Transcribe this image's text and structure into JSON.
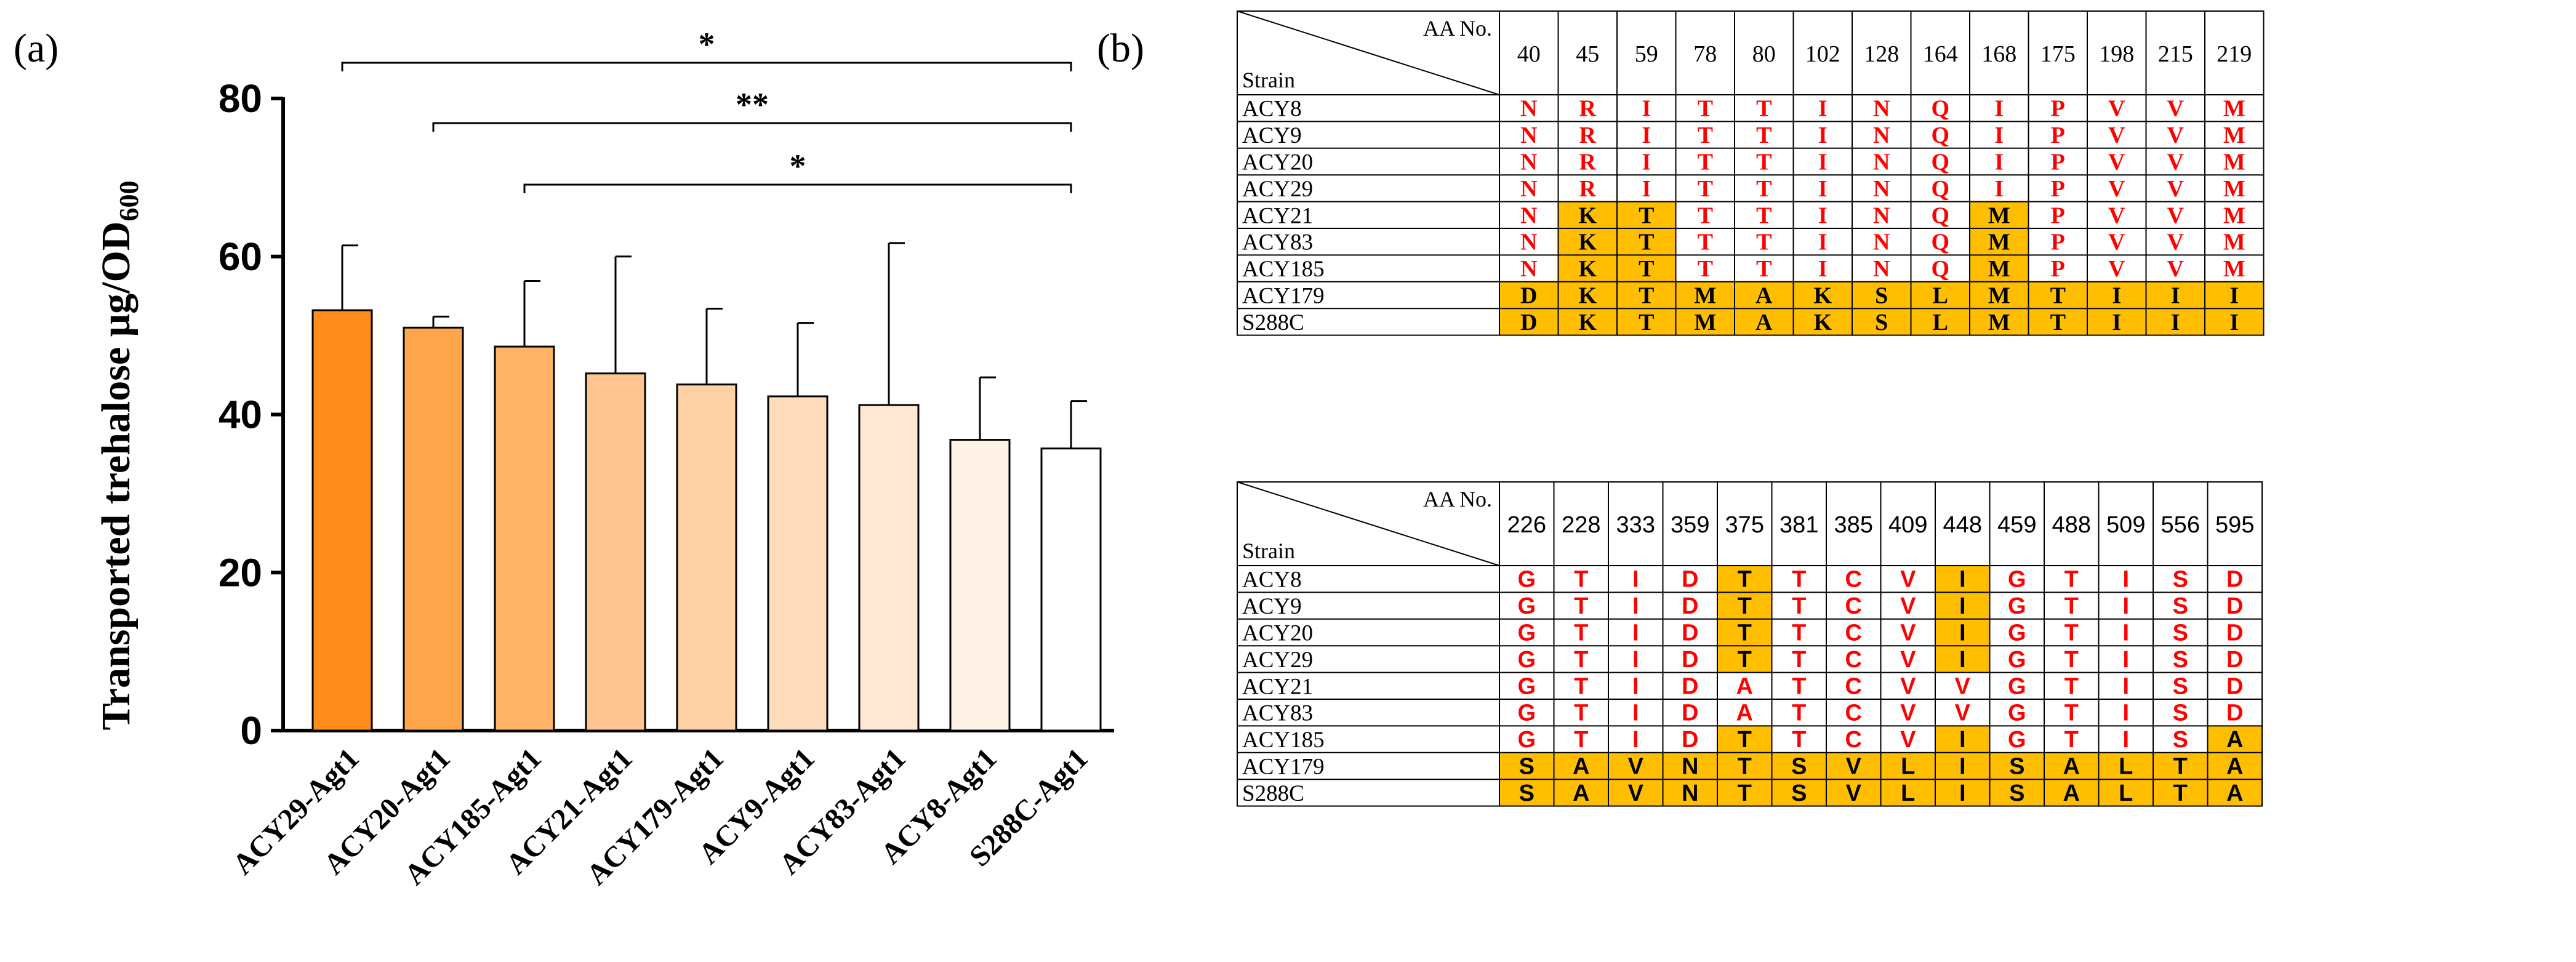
{
  "panel_labels": {
    "a": "(a)",
    "b": "(b)"
  },
  "colors": {
    "highlight": "#ffbf00",
    "residue": "#ff0000",
    "black": "#000000"
  },
  "chart_data": {
    "type": "bar",
    "ylabel_main": "Transported trehalose  μg/OD",
    "ylabel_sub": "600",
    "ylim": [
      0,
      80
    ],
    "yticks": [
      0,
      20,
      40,
      60,
      80
    ],
    "categories": [
      "ACY29-Agt1",
      "ACY20-Agt1",
      "ACY185-Agt1",
      "ACY21-Agt1",
      "ACY179-Agt1",
      "ACY9-Agt1",
      "ACY83-Agt1",
      "ACY8-Agt1",
      "S288C-Agt1"
    ],
    "values": [
      53.2,
      51.0,
      48.6,
      45.2,
      43.8,
      42.3,
      41.2,
      36.8,
      35.7
    ],
    "errors": [
      8.2,
      1.4,
      8.3,
      14.8,
      9.6,
      9.3,
      20.5,
      7.9,
      6.0
    ],
    "bar_colors": [
      "#ff8c1a",
      "#ffa64d",
      "#ffb366",
      "#ffc48f",
      "#ffd1a6",
      "#ffdcbc",
      "#ffe8d3",
      "#fff2e6",
      "#ffffff"
    ],
    "grid": false,
    "significance": [
      {
        "from": 0,
        "to": 8,
        "label": "*"
      },
      {
        "from": 1,
        "to": 8,
        "label": "**"
      },
      {
        "from": 2,
        "to": 8,
        "label": "*"
      }
    ]
  },
  "tables": [
    {
      "header_top": "AA No.",
      "header_bottom": "Strain",
      "font": "serif",
      "positions": [
        "40",
        "45",
        "59",
        "78",
        "80",
        "102",
        "128",
        "164",
        "168",
        "175",
        "198",
        "215",
        "219"
      ],
      "rows": [
        {
          "strain": "ACY8",
          "residues": [
            "N",
            "R",
            "I",
            "T",
            "T",
            "I",
            "N",
            "Q",
            "I",
            "P",
            "V",
            "V",
            "M"
          ],
          "hl": [
            0,
            0,
            0,
            0,
            0,
            0,
            0,
            0,
            0,
            0,
            0,
            0,
            0
          ]
        },
        {
          "strain": "ACY9",
          "residues": [
            "N",
            "R",
            "I",
            "T",
            "T",
            "I",
            "N",
            "Q",
            "I",
            "P",
            "V",
            "V",
            "M"
          ],
          "hl": [
            0,
            0,
            0,
            0,
            0,
            0,
            0,
            0,
            0,
            0,
            0,
            0,
            0
          ]
        },
        {
          "strain": "ACY20",
          "residues": [
            "N",
            "R",
            "I",
            "T",
            "T",
            "I",
            "N",
            "Q",
            "I",
            "P",
            "V",
            "V",
            "M"
          ],
          "hl": [
            0,
            0,
            0,
            0,
            0,
            0,
            0,
            0,
            0,
            0,
            0,
            0,
            0
          ]
        },
        {
          "strain": "ACY29",
          "residues": [
            "N",
            "R",
            "I",
            "T",
            "T",
            "I",
            "N",
            "Q",
            "I",
            "P",
            "V",
            "V",
            "M"
          ],
          "hl": [
            0,
            0,
            0,
            0,
            0,
            0,
            0,
            0,
            0,
            0,
            0,
            0,
            0
          ]
        },
        {
          "strain": "ACY21",
          "residues": [
            "N",
            "K",
            "T",
            "T",
            "T",
            "I",
            "N",
            "Q",
            "M",
            "P",
            "V",
            "V",
            "M"
          ],
          "hl": [
            0,
            1,
            1,
            0,
            0,
            0,
            0,
            0,
            1,
            0,
            0,
            0,
            0
          ]
        },
        {
          "strain": "ACY83",
          "residues": [
            "N",
            "K",
            "T",
            "T",
            "T",
            "I",
            "N",
            "Q",
            "M",
            "P",
            "V",
            "V",
            "M"
          ],
          "hl": [
            0,
            1,
            1,
            0,
            0,
            0,
            0,
            0,
            1,
            0,
            0,
            0,
            0
          ]
        },
        {
          "strain": "ACY185",
          "residues": [
            "N",
            "K",
            "T",
            "T",
            "T",
            "I",
            "N",
            "Q",
            "M",
            "P",
            "V",
            "V",
            "M"
          ],
          "hl": [
            0,
            1,
            1,
            0,
            0,
            0,
            0,
            0,
            1,
            0,
            0,
            0,
            0
          ]
        },
        {
          "strain": "ACY179",
          "residues": [
            "D",
            "K",
            "T",
            "M",
            "A",
            "K",
            "S",
            "L",
            "M",
            "T",
            "I",
            "I",
            "I"
          ],
          "hl": [
            1,
            1,
            1,
            1,
            1,
            1,
            1,
            1,
            1,
            1,
            1,
            1,
            1
          ]
        },
        {
          "strain": "S288C",
          "residues": [
            "D",
            "K",
            "T",
            "M",
            "A",
            "K",
            "S",
            "L",
            "M",
            "T",
            "I",
            "I",
            "I"
          ],
          "hl": [
            1,
            1,
            1,
            1,
            1,
            1,
            1,
            1,
            1,
            1,
            1,
            1,
            1
          ]
        }
      ]
    },
    {
      "header_top": "AA No.",
      "header_bottom": "Strain",
      "font": "sans",
      "positions": [
        "226",
        "228",
        "333",
        "359",
        "375",
        "381",
        "385",
        "409",
        "448",
        "459",
        "488",
        "509",
        "556",
        "595"
      ],
      "rows": [
        {
          "strain": "ACY8",
          "residues": [
            "G",
            "T",
            "I",
            "D",
            "T",
            "T",
            "C",
            "V",
            "I",
            "G",
            "T",
            "I",
            "S",
            "D"
          ],
          "hl": [
            0,
            0,
            0,
            0,
            1,
            0,
            0,
            0,
            1,
            0,
            0,
            0,
            0,
            0
          ]
        },
        {
          "strain": "ACY9",
          "residues": [
            "G",
            "T",
            "I",
            "D",
            "T",
            "T",
            "C",
            "V",
            "I",
            "G",
            "T",
            "I",
            "S",
            "D"
          ],
          "hl": [
            0,
            0,
            0,
            0,
            1,
            0,
            0,
            0,
            1,
            0,
            0,
            0,
            0,
            0
          ]
        },
        {
          "strain": "ACY20",
          "residues": [
            "G",
            "T",
            "I",
            "D",
            "T",
            "T",
            "C",
            "V",
            "I",
            "G",
            "T",
            "I",
            "S",
            "D"
          ],
          "hl": [
            0,
            0,
            0,
            0,
            1,
            0,
            0,
            0,
            1,
            0,
            0,
            0,
            0,
            0
          ]
        },
        {
          "strain": "ACY29",
          "residues": [
            "G",
            "T",
            "I",
            "D",
            "T",
            "T",
            "C",
            "V",
            "I",
            "G",
            "T",
            "I",
            "S",
            "D"
          ],
          "hl": [
            0,
            0,
            0,
            0,
            1,
            0,
            0,
            0,
            1,
            0,
            0,
            0,
            0,
            0
          ]
        },
        {
          "strain": "ACY21",
          "residues": [
            "G",
            "T",
            "I",
            "D",
            "A",
            "T",
            "C",
            "V",
            "V",
            "G",
            "T",
            "I",
            "S",
            "D"
          ],
          "hl": [
            0,
            0,
            0,
            0,
            0,
            0,
            0,
            0,
            0,
            0,
            0,
            0,
            0,
            0
          ]
        },
        {
          "strain": "ACY83",
          "residues": [
            "G",
            "T",
            "I",
            "D",
            "A",
            "T",
            "C",
            "V",
            "V",
            "G",
            "T",
            "I",
            "S",
            "D"
          ],
          "hl": [
            0,
            0,
            0,
            0,
            0,
            0,
            0,
            0,
            0,
            0,
            0,
            0,
            0,
            0
          ]
        },
        {
          "strain": "ACY185",
          "residues": [
            "G",
            "T",
            "I",
            "D",
            "T",
            "T",
            "C",
            "V",
            "I",
            "G",
            "T",
            "I",
            "S",
            "A"
          ],
          "hl": [
            0,
            0,
            0,
            0,
            1,
            0,
            0,
            0,
            1,
            0,
            0,
            0,
            0,
            1
          ]
        },
        {
          "strain": "ACY179",
          "residues": [
            "S",
            "A",
            "V",
            "N",
            "T",
            "S",
            "V",
            "L",
            "I",
            "S",
            "A",
            "L",
            "T",
            "A"
          ],
          "hl": [
            1,
            1,
            1,
            1,
            1,
            1,
            1,
            1,
            1,
            1,
            1,
            1,
            1,
            1
          ]
        },
        {
          "strain": "S288C",
          "residues": [
            "S",
            "A",
            "V",
            "N",
            "T",
            "S",
            "V",
            "L",
            "I",
            "S",
            "A",
            "L",
            "T",
            "A"
          ],
          "hl": [
            1,
            1,
            1,
            1,
            1,
            1,
            1,
            1,
            1,
            1,
            1,
            1,
            1,
            1
          ]
        }
      ]
    }
  ]
}
